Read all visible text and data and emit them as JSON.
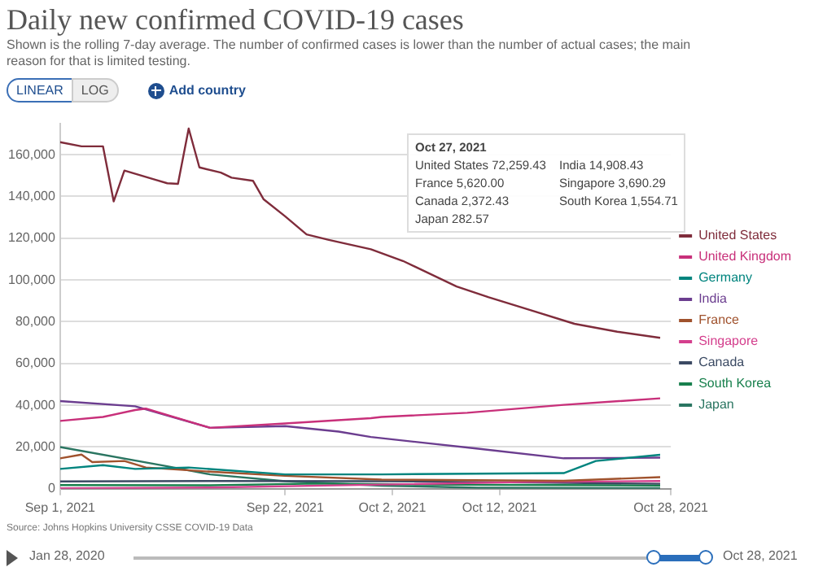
{
  "chart_data": {
    "type": "line",
    "title": "Daily new confirmed COVID-19 cases",
    "subtitle": "Shown is the rolling 7-day average. The number of confirmed cases is lower than the number of actual cases; the main reason for that is limited testing.",
    "annotations": [
      "LINEAR",
      "LOG",
      "Add country",
      "Source: Johns Hopkins University CSSE COVID-19 Data",
      "Jan 28, 2020",
      "Oct 28, 2021",
      "Oct 27, 2021",
      "United States 72,259.43",
      "India 14,908.43",
      "France 5,620.00",
      "Singapore 3,690.29",
      "Canada 2,372.43",
      "South Korea 1,554.71",
      "Japan 282.57"
    ],
    "xlim": [
      "2021-09-01",
      "2021-10-28"
    ],
    "xticks": [
      {
        "value": "2021-09-01",
        "label": "Sep 1, 2021"
      },
      {
        "value": "2021-09-22",
        "label": "Sep 22, 2021"
      },
      {
        "value": "2021-10-02",
        "label": "Oct 2, 2021"
      },
      {
        "value": "2021-10-12",
        "label": "Oct 12, 2021"
      },
      {
        "value": "2021-10-28",
        "label": "Oct 28, 2021"
      }
    ],
    "ylim": [
      0,
      175000
    ],
    "yticks": [
      0,
      {
        "value": 20000,
        "label": "20,000"
      },
      {
        "value": 40000,
        "label": "40,000"
      },
      {
        "value": 60000,
        "label": "60,000"
      },
      {
        "value": 80000,
        "label": "80,000"
      },
      {
        "value": 100000,
        "label": "100,000"
      },
      {
        "value": 120000,
        "label": "120,000"
      },
      {
        "value": 140000,
        "label": "140,000"
      },
      {
        "value": 160000,
        "label": "160,000"
      }
    ],
    "grid": "y",
    "legend": "right",
    "marker": "none",
    "line_style": "solid",
    "series": [
      {
        "name": "United States",
        "color": "#7f2c3b",
        "x": [
          "2021-09-01",
          "2021-09-03",
          "2021-09-05",
          "2021-09-06",
          "2021-09-07",
          "2021-09-10",
          "2021-09-11",
          "2021-09-12",
          "2021-09-13",
          "2021-09-14",
          "2021-09-16",
          "2021-09-17",
          "2021-09-19",
          "2021-09-20",
          "2021-09-22",
          "2021-09-24",
          "2021-09-26",
          "2021-09-30",
          "2021-10-03",
          "2021-10-08",
          "2021-10-11",
          "2021-10-15",
          "2021-10-19",
          "2021-10-23",
          "2021-10-27"
        ],
        "values": [
          166000,
          164000,
          164000,
          137600,
          152400,
          147800,
          146300,
          146000,
          172500,
          153900,
          151400,
          149000,
          147500,
          138600,
          130500,
          121800,
          119300,
          114700,
          109100,
          96900,
          91700,
          85400,
          79000,
          75200,
          72300
        ]
      },
      {
        "name": "United Kingdom",
        "color": "#c8307a",
        "x": [
          "2021-09-01",
          "2021-09-05",
          "2021-09-08",
          "2021-09-09",
          "2021-09-15",
          "2021-09-22",
          "2021-09-30",
          "2021-10-01",
          "2021-10-09",
          "2021-10-18",
          "2021-10-27"
        ],
        "values": [
          32500,
          34400,
          37700,
          38400,
          29200,
          31300,
          33800,
          34400,
          36400,
          40200,
          43300
        ]
      },
      {
        "name": "Germany",
        "color": "#00847e",
        "x": [
          "2021-09-01",
          "2021-09-05",
          "2021-09-08",
          "2021-09-13",
          "2021-09-22",
          "2021-10-01",
          "2021-10-18",
          "2021-10-21",
          "2021-10-27"
        ],
        "values": [
          9500,
          11300,
          9500,
          10200,
          6900,
          6900,
          7500,
          13300,
          16300
        ]
      },
      {
        "name": "India",
        "color": "#6b3d8f",
        "x": [
          "2021-09-01",
          "2021-09-08",
          "2021-09-15",
          "2021-09-22",
          "2021-09-27",
          "2021-09-30",
          "2021-10-10",
          "2021-10-18",
          "2021-10-27"
        ],
        "values": [
          42000,
          39500,
          29200,
          30000,
          27400,
          24800,
          19200,
          14600,
          14900
        ]
      },
      {
        "name": "France",
        "color": "#a0522d",
        "x": [
          "2021-09-01",
          "2021-09-03",
          "2021-09-04",
          "2021-09-07",
          "2021-09-09",
          "2021-09-15",
          "2021-09-22",
          "2021-10-01",
          "2021-10-18",
          "2021-10-27"
        ],
        "values": [
          14600,
          16400,
          12800,
          13300,
          10200,
          8200,
          6200,
          4400,
          3800,
          5600
        ]
      },
      {
        "name": "Singapore",
        "color": "#d43f8d",
        "x": [
          "2021-09-01",
          "2021-09-15",
          "2021-10-01",
          "2021-10-15",
          "2021-10-27"
        ],
        "values": [
          200,
          600,
          2000,
          3300,
          3700
        ]
      },
      {
        "name": "Canada",
        "color": "#3b4a63",
        "x": [
          "2021-09-01",
          "2021-09-15",
          "2021-10-01",
          "2021-10-15",
          "2021-10-27"
        ],
        "values": [
          3500,
          3700,
          3600,
          3000,
          2400
        ]
      },
      {
        "name": "South Korea",
        "color": "#18804d",
        "x": [
          "2021-09-01",
          "2021-09-15",
          "2021-09-25",
          "2021-10-05",
          "2021-10-27"
        ],
        "values": [
          1800,
          1700,
          2500,
          2000,
          1600
        ]
      },
      {
        "name": "Japan",
        "color": "#2a7561",
        "x": [
          "2021-09-01",
          "2021-09-11",
          "2021-09-15",
          "2021-09-22",
          "2021-10-01",
          "2021-10-10",
          "2021-10-27"
        ],
        "values": [
          20000,
          10800,
          6900,
          3600,
          1500,
          500,
          300
        ]
      }
    ]
  }
}
